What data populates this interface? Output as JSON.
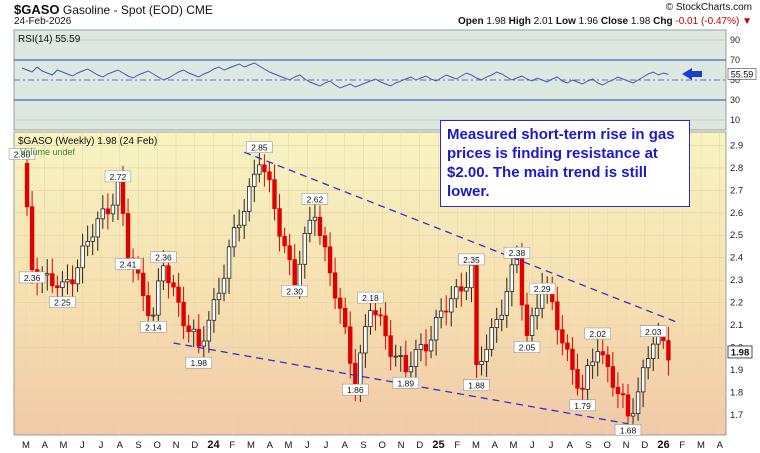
{
  "header": {
    "symbol": "$GASO",
    "name": "Gasoline - Spot (EOD) CME",
    "date": "24-Feb-2026",
    "brand": "© StockCharts.com",
    "open_label": "Open",
    "open": "1.98",
    "high_label": "High",
    "high": "2.01",
    "low_label": "Low",
    "low": "1.96",
    "close_label": "Close",
    "close": "1.98",
    "chg_label": "Chg",
    "chg": "-0.01 (-0.47%)"
  },
  "rsi_panel": {
    "label": "RSI(14) 55.59",
    "value_tag": "55.59",
    "ticks": [
      "90",
      "70",
      "50",
      "30",
      "10"
    ]
  },
  "price_panel": {
    "label": "$GASO (Weekly) 1.98 (24 Feb)",
    "volume_label": "Volume undef",
    "price_tag": "1.98",
    "y_ticks": [
      "2.9",
      "2.8",
      "2.7",
      "2.6",
      "2.5",
      "2.4",
      "2.3",
      "2.2",
      "2.1",
      "2.0",
      "1.9",
      "1.8",
      "1.7"
    ]
  },
  "annotation": "Measured short-term rise in gas prices is finding resistance at $2.00.  The main trend is still lower.",
  "colors": {
    "up": "#222222",
    "down": "#e00000",
    "trendline": "#3030d0",
    "rsi": "#4455bb"
  },
  "chart_data": {
    "type": "candlestick",
    "x_axis_labels": [
      "M",
      "A",
      "M",
      "J",
      "J",
      "A",
      "S",
      "O",
      "N",
      "D",
      "24",
      "F",
      "M",
      "A",
      "M",
      "J",
      "J",
      "A",
      "S",
      "O",
      "N",
      "D",
      "25",
      "F",
      "M",
      "A",
      "M",
      "J",
      "J",
      "A",
      "S",
      "O",
      "N",
      "D",
      "26",
      "F",
      "M",
      "A"
    ],
    "ylim": [
      1.61,
      2.96
    ],
    "rsi_ylim": [
      0,
      100
    ],
    "price_labels": [
      {
        "text": "2.80",
        "week": 0,
        "v": 2.86
      },
      {
        "text": "2.36",
        "week": 2,
        "v": 2.31
      },
      {
        "text": "2.25",
        "week": 8,
        "v": 2.2
      },
      {
        "text": "2.72",
        "week": 19,
        "v": 2.76
      },
      {
        "text": "2.41",
        "week": 21,
        "v": 2.37
      },
      {
        "text": "2.36",
        "week": 28,
        "v": 2.4
      },
      {
        "text": "2.14",
        "week": 26,
        "v": 2.09
      },
      {
        "text": "1.98",
        "week": 35,
        "v": 1.93
      },
      {
        "text": "2.85",
        "week": 47,
        "v": 2.89
      },
      {
        "text": "2.62",
        "week": 58,
        "v": 2.66
      },
      {
        "text": "2.30",
        "week": 54,
        "v": 2.25
      },
      {
        "text": "2.18",
        "week": 69,
        "v": 2.22
      },
      {
        "text": "1.86",
        "week": 66,
        "v": 1.81
      },
      {
        "text": "1.89",
        "week": 76,
        "v": 1.84
      },
      {
        "text": "2.35",
        "week": 89,
        "v": 2.39
      },
      {
        "text": "1.88",
        "week": 90,
        "v": 1.83
      },
      {
        "text": "2.38",
        "week": 98,
        "v": 2.42
      },
      {
        "text": "2.29",
        "week": 103,
        "v": 2.26
      },
      {
        "text": "2.05",
        "week": 100,
        "v": 2.0
      },
      {
        "text": "2.02",
        "week": 114,
        "v": 2.06
      },
      {
        "text": "1.79",
        "week": 111,
        "v": 1.74
      },
      {
        "text": "2.03",
        "week": 125,
        "v": 2.07
      },
      {
        "text": "1.68",
        "week": 120,
        "v": 1.63
      }
    ],
    "trendlines": [
      {
        "w1": 44,
        "v1": 2.87,
        "w2": 130,
        "v2": 2.11
      },
      {
        "w1": 30,
        "v1": 2.02,
        "w2": 120,
        "v2": 1.66
      }
    ],
    "rsi": [
      62,
      60,
      58,
      63,
      59,
      57,
      55,
      60,
      58,
      56,
      54,
      57,
      59,
      61,
      58,
      55,
      53,
      56,
      58,
      60,
      57,
      54,
      52,
      55,
      57,
      59,
      56,
      53,
      50,
      52,
      55,
      58,
      60,
      57,
      55,
      53,
      56,
      58,
      61,
      63,
      60,
      62,
      64,
      66,
      63,
      65,
      67,
      64,
      61,
      58,
      56,
      54,
      52,
      50,
      53,
      55,
      51,
      48,
      46,
      44,
      47,
      49,
      45,
      42,
      44,
      46,
      43,
      45,
      47,
      49,
      51,
      48,
      46,
      44,
      47,
      49,
      51,
      53,
      50,
      52,
      54,
      51,
      49,
      52,
      55,
      53,
      51,
      54,
      57,
      55,
      52,
      50,
      53,
      55,
      58,
      56,
      53,
      50,
      52,
      54,
      51,
      49,
      52,
      50,
      48,
      51,
      53,
      49,
      47,
      50,
      48,
      46,
      49,
      51,
      47,
      45,
      48,
      50,
      53,
      51,
      49,
      47,
      50,
      53,
      56,
      58,
      55,
      57,
      55.59
    ]
  }
}
